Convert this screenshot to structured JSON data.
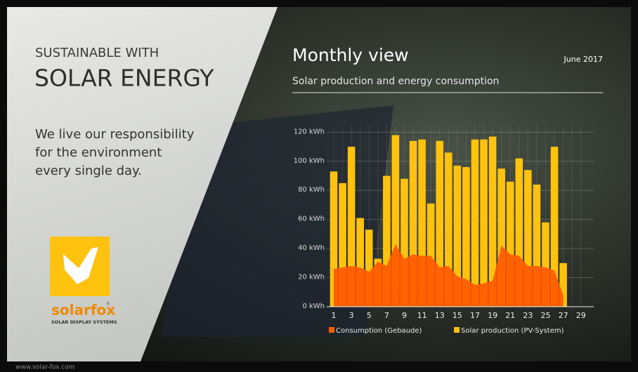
{
  "panel": {
    "kicker": "SUSTAINABLE WITH",
    "headline": "SOLAR ENERGY",
    "message": [
      "We live our responsibility",
      "for the environment",
      "every single day."
    ],
    "logo": {
      "brand": "solarfox",
      "mark": "®",
      "tagline": "SOLAR DISPLAY SYSTEMS"
    }
  },
  "footer": "www.solar-fox.com",
  "chart_data": {
    "type": "bar",
    "title": "Monthly view",
    "date": "June 2017",
    "subtitle": "Solar production and energy consumption",
    "categories": [
      1,
      null,
      3,
      null,
      5,
      null,
      7,
      null,
      9,
      null,
      11,
      null,
      13,
      null,
      15,
      null,
      17,
      null,
      19,
      null,
      21,
      null,
      23,
      null,
      25,
      null,
      27,
      null,
      29
    ],
    "series": [
      {
        "name": "Consumption (Gebaude)",
        "color": "#ff5a00",
        "type": "area",
        "values": [
          26,
          27,
          28,
          27,
          24,
          31,
          28,
          43,
          33,
          36,
          35,
          35,
          27,
          28,
          21,
          19,
          15,
          16,
          18,
          42,
          36,
          35,
          28,
          28,
          27,
          25,
          8,
          null,
          null
        ]
      },
      {
        "name": "Solar production (PV-System)",
        "color": "#ffc20e",
        "type": "bar",
        "values": [
          93,
          85,
          110,
          61,
          53,
          33,
          90,
          118,
          88,
          114,
          115,
          71,
          114,
          106,
          97,
          96,
          115,
          115,
          117,
          95,
          86,
          102,
          94,
          84,
          58,
          110,
          30,
          null,
          null
        ]
      }
    ],
    "ylim": [
      0,
      125
    ],
    "yticks": [
      {
        "value": 0,
        "label": "0 kWh"
      },
      {
        "value": 20,
        "label": "20 kWh"
      },
      {
        "value": 40,
        "label": "40 kWh"
      },
      {
        "value": 60,
        "label": "60 kWh"
      },
      {
        "value": 80,
        "label": "80 kWh"
      },
      {
        "value": 100,
        "label": "100 kWh"
      },
      {
        "value": 120,
        "label": "120 kWh"
      }
    ],
    "grid": true
  }
}
